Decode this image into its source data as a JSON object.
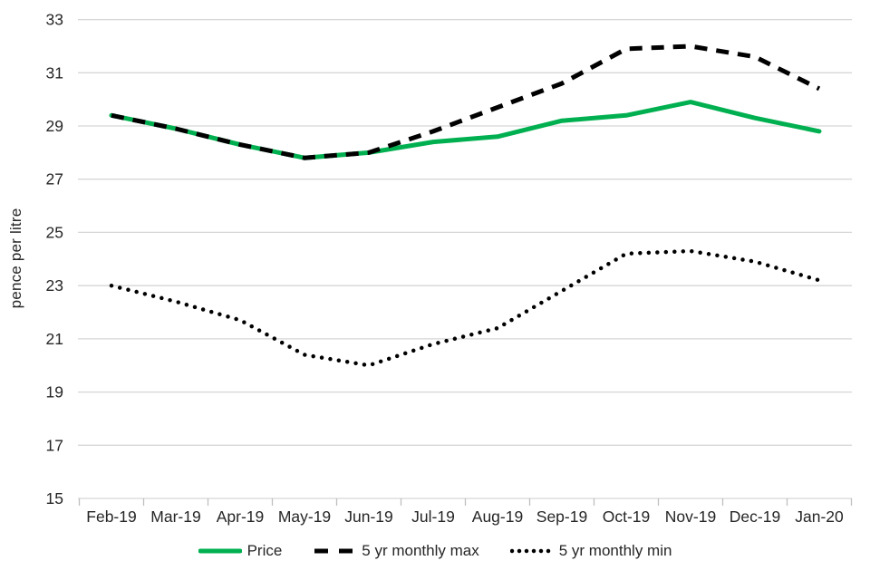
{
  "chart_data": {
    "type": "line",
    "title": "",
    "xlabel": "",
    "ylabel": "pence per litre",
    "ylim": [
      15,
      33
    ],
    "ytick_step": 2,
    "grid": true,
    "legend_position": "bottom",
    "categories": [
      "Feb-19",
      "Mar-19",
      "Apr-19",
      "May-19",
      "Jun-19",
      "Jul-19",
      "Aug-19",
      "Sep-19",
      "Oct-19",
      "Nov-19",
      "Dec-19",
      "Jan-20"
    ],
    "series": [
      {
        "key": "price",
        "name": "Price",
        "style": "solid",
        "color": "#00B050",
        "values": [
          29.4,
          28.9,
          28.3,
          27.8,
          28.0,
          28.4,
          28.6,
          29.2,
          29.4,
          29.9,
          29.3,
          28.8
        ]
      },
      {
        "key": "max",
        "name": "5 yr monthly max",
        "style": "dashed",
        "color": "#000000",
        "values": [
          29.4,
          28.9,
          28.3,
          27.8,
          28.0,
          28.8,
          29.7,
          30.6,
          31.9,
          32.0,
          31.6,
          30.4
        ]
      },
      {
        "key": "min",
        "name": "5 yr monthly min",
        "style": "dotted",
        "color": "#000000",
        "values": [
          23.0,
          22.4,
          21.7,
          20.4,
          20.0,
          20.8,
          21.4,
          22.8,
          24.2,
          24.3,
          23.9,
          23.2
        ]
      }
    ]
  },
  "colors": {
    "grid": "#D6D6D6",
    "axis": "#BFBFBF",
    "text": "#262626",
    "background": "#FFFFFF"
  }
}
